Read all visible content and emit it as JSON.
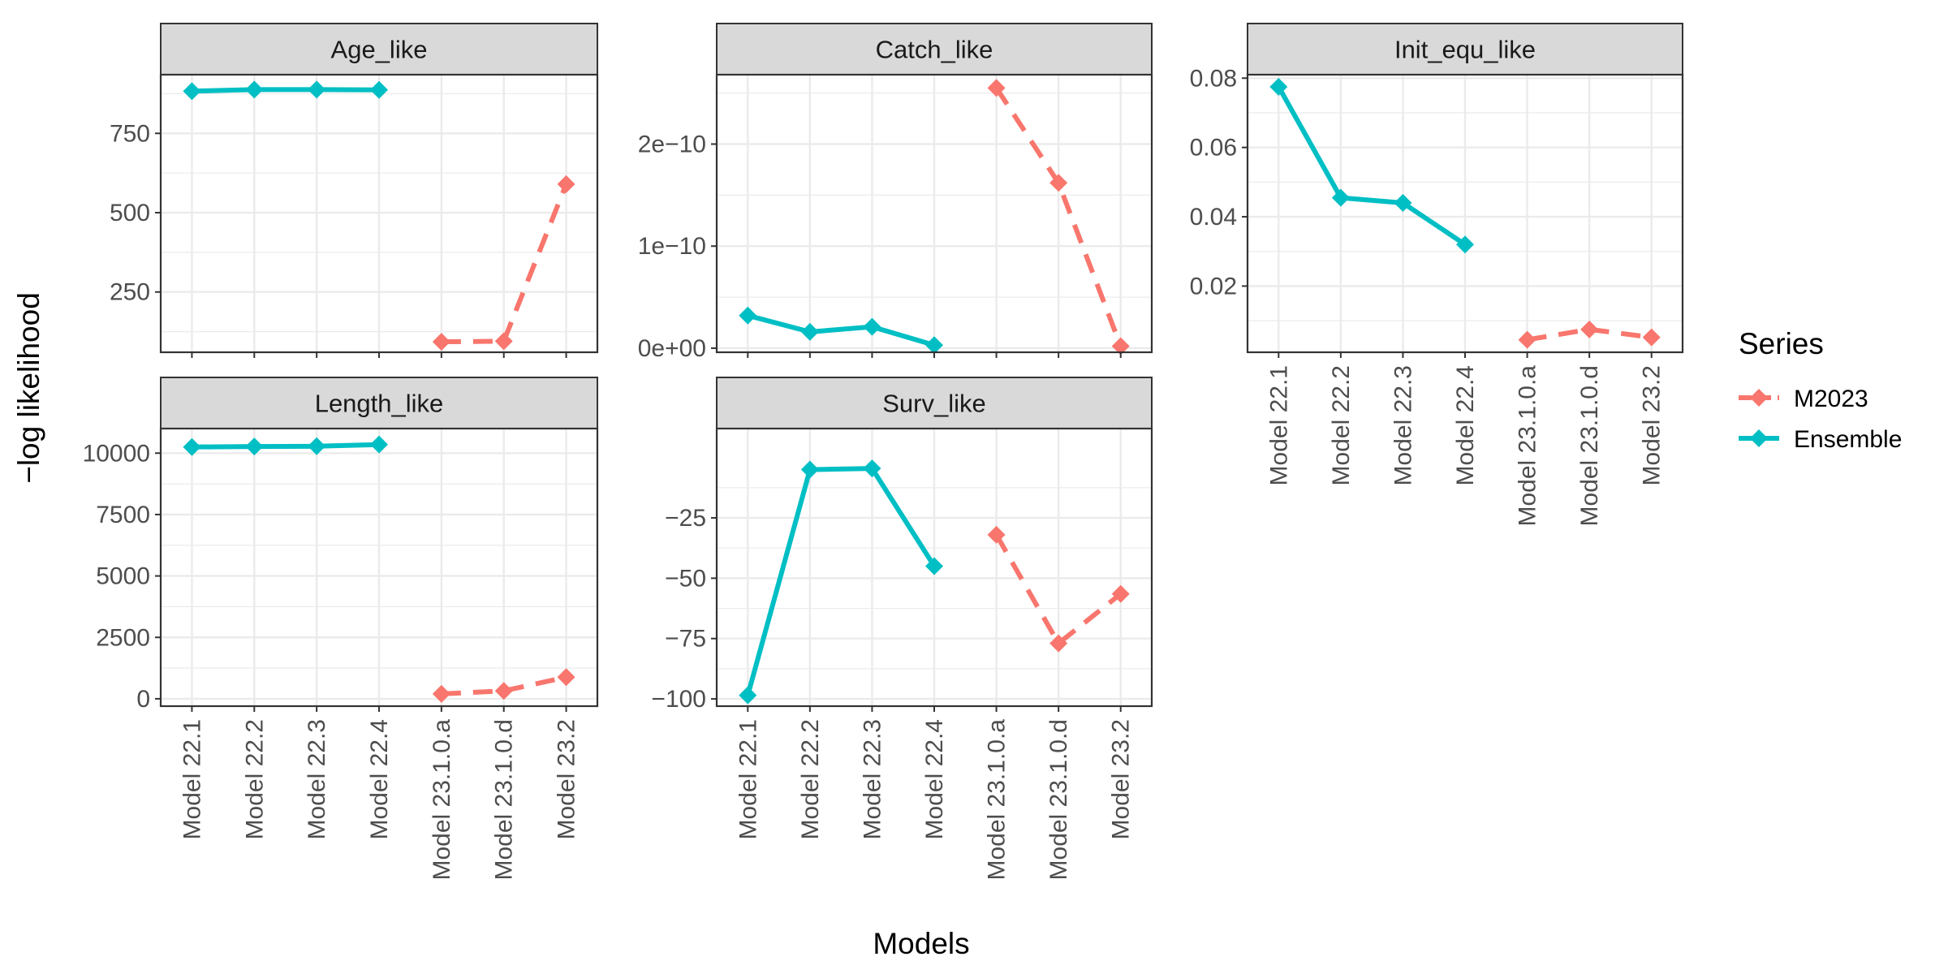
{
  "figure": {
    "ylabel": "−log likelihood",
    "xlabel": "Models",
    "legend_title": "Series",
    "legend_position": "right"
  },
  "colors": {
    "M2023": "#F8766D",
    "Ensemble": "#00BFC4",
    "strip_bg": "#D9D9D9",
    "grid": "#EBEBEB",
    "panel_border": "#333333"
  },
  "chart_data": {
    "type": "line",
    "facets": true,
    "categories": [
      "Model 22.1",
      "Model 22.2",
      "Model 22.3",
      "Model 22.4",
      "Model 23.1.0.a",
      "Model 23.1.0.d",
      "Model 23.2"
    ],
    "series": [
      {
        "name": "M2023",
        "line_style": "dashed",
        "marker": "diamond"
      },
      {
        "name": "Ensemble",
        "line_style": "solid",
        "marker": "diamond"
      }
    ],
    "panels": [
      {
        "title": "Age_like",
        "ylim": [
          60,
          935
        ],
        "y_ticks": [
          {
            "value": 250,
            "label": "250"
          },
          {
            "value": 500,
            "label": "500"
          },
          {
            "value": 750,
            "label": "750"
          }
        ],
        "minor_ticks": [
          125,
          375,
          625,
          875
        ],
        "values": {
          "Ensemble": [
            883,
            888,
            888,
            887,
            null,
            null,
            null
          ],
          "M2023": [
            null,
            null,
            null,
            null,
            93,
            95,
            590
          ]
        }
      },
      {
        "title": "Catch_like",
        "ylim": [
          -4e-12,
          2.68e-10
        ],
        "y_ticks": [
          {
            "value": 0,
            "label": "0e+00"
          },
          {
            "value": 1e-10,
            "label": "1e−10"
          },
          {
            "value": 2e-10,
            "label": "2e−10"
          }
        ],
        "minor_ticks": [
          5e-11,
          1.5e-10,
          2.5e-10
        ],
        "values": {
          "Ensemble": [
            3.2e-11,
            1.6e-11,
            2.1e-11,
            3e-12,
            null,
            null,
            null
          ],
          "M2023": [
            null,
            null,
            null,
            null,
            2.55e-10,
            1.62e-10,
            2e-12
          ]
        }
      },
      {
        "title": "Init_equ_like",
        "ylim": [
          0.0009,
          0.081
        ],
        "y_ticks": [
          {
            "value": 0.02,
            "label": "0.02"
          },
          {
            "value": 0.04,
            "label": "0.04"
          },
          {
            "value": 0.06,
            "label": "0.06"
          },
          {
            "value": 0.08,
            "label": "0.08"
          }
        ],
        "minor_ticks": [
          0.01,
          0.03,
          0.05,
          0.07
        ],
        "values": {
          "Ensemble": [
            0.0775,
            0.0455,
            0.044,
            0.032,
            null,
            null,
            null
          ],
          "M2023": [
            null,
            null,
            null,
            null,
            0.0045,
            0.0075,
            0.0052
          ]
        }
      },
      {
        "title": "Length_like",
        "ylim": [
          -300,
          11000
        ],
        "y_ticks": [
          {
            "value": 0,
            "label": "0"
          },
          {
            "value": 2500,
            "label": "2500"
          },
          {
            "value": 5000,
            "label": "5000"
          },
          {
            "value": 7500,
            "label": "7500"
          },
          {
            "value": 10000,
            "label": "10000"
          }
        ],
        "minor_ticks": [
          1250,
          3750,
          6250,
          8750
        ],
        "values": {
          "Ensemble": [
            10250,
            10270,
            10280,
            10350,
            null,
            null,
            null
          ],
          "M2023": [
            null,
            null,
            null,
            null,
            200,
            320,
            880
          ]
        }
      },
      {
        "title": "Surv_like",
        "ylim": [
          -103,
          12
        ],
        "y_ticks": [
          {
            "value": -100,
            "label": "−100"
          },
          {
            "value": -75,
            "label": "−75"
          },
          {
            "value": -50,
            "label": "−50"
          },
          {
            "value": -25,
            "label": "−25"
          }
        ],
        "minor_ticks": [
          -87.5,
          -62.5,
          -37.5,
          -12.5
        ],
        "values": {
          "Ensemble": [
            -98.5,
            -5,
            -4.5,
            -45,
            null,
            null,
            null
          ],
          "M2023": [
            null,
            null,
            null,
            null,
            -32,
            -77,
            -56.5
          ]
        }
      }
    ]
  }
}
